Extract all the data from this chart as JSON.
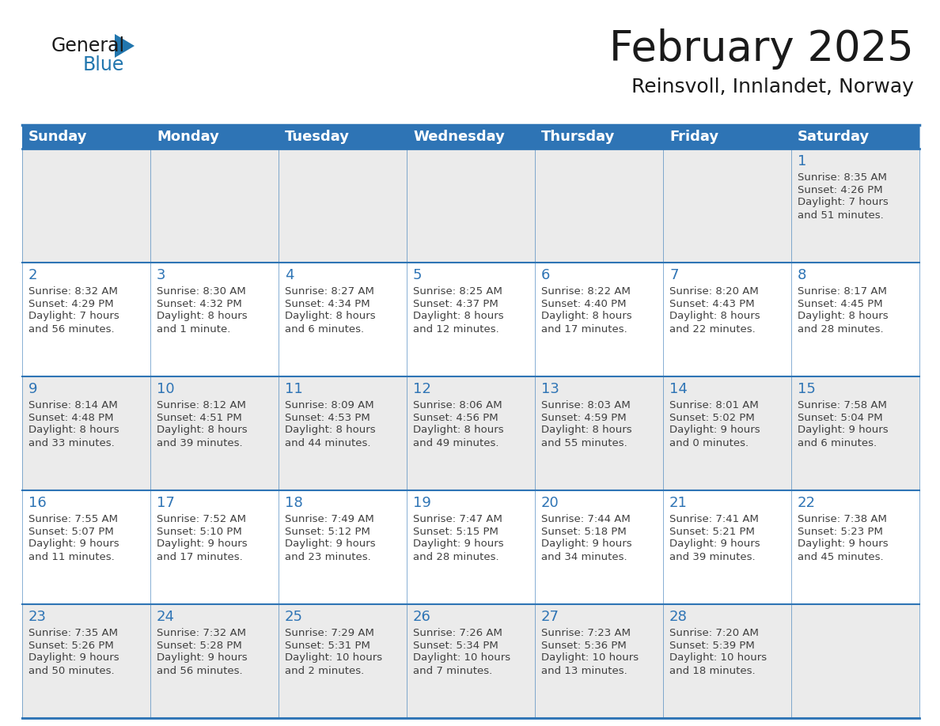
{
  "title": "February 2025",
  "subtitle": "Reinsvoll, Innlandet, Norway",
  "header_bg": "#2E74B5",
  "header_text_color": "#FFFFFF",
  "cell_bg_white": "#FFFFFF",
  "cell_bg_shaded": "#EBEBEB",
  "day_number_color": "#2E74B5",
  "text_color": "#404040",
  "days_of_week": [
    "Sunday",
    "Monday",
    "Tuesday",
    "Wednesday",
    "Thursday",
    "Friday",
    "Saturday"
  ],
  "weeks": [
    [
      {
        "day": null,
        "sunrise": null,
        "sunset": null,
        "daylight": null
      },
      {
        "day": null,
        "sunrise": null,
        "sunset": null,
        "daylight": null
      },
      {
        "day": null,
        "sunrise": null,
        "sunset": null,
        "daylight": null
      },
      {
        "day": null,
        "sunrise": null,
        "sunset": null,
        "daylight": null
      },
      {
        "day": null,
        "sunrise": null,
        "sunset": null,
        "daylight": null
      },
      {
        "day": null,
        "sunrise": null,
        "sunset": null,
        "daylight": null
      },
      {
        "day": 1,
        "sunrise": "8:35 AM",
        "sunset": "4:26 PM",
        "daylight": "7 hours\nand 51 minutes."
      }
    ],
    [
      {
        "day": 2,
        "sunrise": "8:32 AM",
        "sunset": "4:29 PM",
        "daylight": "7 hours\nand 56 minutes."
      },
      {
        "day": 3,
        "sunrise": "8:30 AM",
        "sunset": "4:32 PM",
        "daylight": "8 hours\nand 1 minute."
      },
      {
        "day": 4,
        "sunrise": "8:27 AM",
        "sunset": "4:34 PM",
        "daylight": "8 hours\nand 6 minutes."
      },
      {
        "day": 5,
        "sunrise": "8:25 AM",
        "sunset": "4:37 PM",
        "daylight": "8 hours\nand 12 minutes."
      },
      {
        "day": 6,
        "sunrise": "8:22 AM",
        "sunset": "4:40 PM",
        "daylight": "8 hours\nand 17 minutes."
      },
      {
        "day": 7,
        "sunrise": "8:20 AM",
        "sunset": "4:43 PM",
        "daylight": "8 hours\nand 22 minutes."
      },
      {
        "day": 8,
        "sunrise": "8:17 AM",
        "sunset": "4:45 PM",
        "daylight": "8 hours\nand 28 minutes."
      }
    ],
    [
      {
        "day": 9,
        "sunrise": "8:14 AM",
        "sunset": "4:48 PM",
        "daylight": "8 hours\nand 33 minutes."
      },
      {
        "day": 10,
        "sunrise": "8:12 AM",
        "sunset": "4:51 PM",
        "daylight": "8 hours\nand 39 minutes."
      },
      {
        "day": 11,
        "sunrise": "8:09 AM",
        "sunset": "4:53 PM",
        "daylight": "8 hours\nand 44 minutes."
      },
      {
        "day": 12,
        "sunrise": "8:06 AM",
        "sunset": "4:56 PM",
        "daylight": "8 hours\nand 49 minutes."
      },
      {
        "day": 13,
        "sunrise": "8:03 AM",
        "sunset": "4:59 PM",
        "daylight": "8 hours\nand 55 minutes."
      },
      {
        "day": 14,
        "sunrise": "8:01 AM",
        "sunset": "5:02 PM",
        "daylight": "9 hours\nand 0 minutes."
      },
      {
        "day": 15,
        "sunrise": "7:58 AM",
        "sunset": "5:04 PM",
        "daylight": "9 hours\nand 6 minutes."
      }
    ],
    [
      {
        "day": 16,
        "sunrise": "7:55 AM",
        "sunset": "5:07 PM",
        "daylight": "9 hours\nand 11 minutes."
      },
      {
        "day": 17,
        "sunrise": "7:52 AM",
        "sunset": "5:10 PM",
        "daylight": "9 hours\nand 17 minutes."
      },
      {
        "day": 18,
        "sunrise": "7:49 AM",
        "sunset": "5:12 PM",
        "daylight": "9 hours\nand 23 minutes."
      },
      {
        "day": 19,
        "sunrise": "7:47 AM",
        "sunset": "5:15 PM",
        "daylight": "9 hours\nand 28 minutes."
      },
      {
        "day": 20,
        "sunrise": "7:44 AM",
        "sunset": "5:18 PM",
        "daylight": "9 hours\nand 34 minutes."
      },
      {
        "day": 21,
        "sunrise": "7:41 AM",
        "sunset": "5:21 PM",
        "daylight": "9 hours\nand 39 minutes."
      },
      {
        "day": 22,
        "sunrise": "7:38 AM",
        "sunset": "5:23 PM",
        "daylight": "9 hours\nand 45 minutes."
      }
    ],
    [
      {
        "day": 23,
        "sunrise": "7:35 AM",
        "sunset": "5:26 PM",
        "daylight": "9 hours\nand 50 minutes."
      },
      {
        "day": 24,
        "sunrise": "7:32 AM",
        "sunset": "5:28 PM",
        "daylight": "9 hours\nand 56 minutes."
      },
      {
        "day": 25,
        "sunrise": "7:29 AM",
        "sunset": "5:31 PM",
        "daylight": "10 hours\nand 2 minutes."
      },
      {
        "day": 26,
        "sunrise": "7:26 AM",
        "sunset": "5:34 PM",
        "daylight": "10 hours\nand 7 minutes."
      },
      {
        "day": 27,
        "sunrise": "7:23 AM",
        "sunset": "5:36 PM",
        "daylight": "10 hours\nand 13 minutes."
      },
      {
        "day": 28,
        "sunrise": "7:20 AM",
        "sunset": "5:39 PM",
        "daylight": "10 hours\nand 18 minutes."
      },
      {
        "day": null,
        "sunrise": null,
        "sunset": null,
        "daylight": null
      }
    ]
  ],
  "logo_color_general": "#1a1a1a",
  "logo_color_blue": "#2176AE",
  "title_fontsize": 38,
  "subtitle_fontsize": 18,
  "header_fontsize": 13,
  "day_num_fontsize": 13,
  "cell_text_fontsize": 9.5
}
